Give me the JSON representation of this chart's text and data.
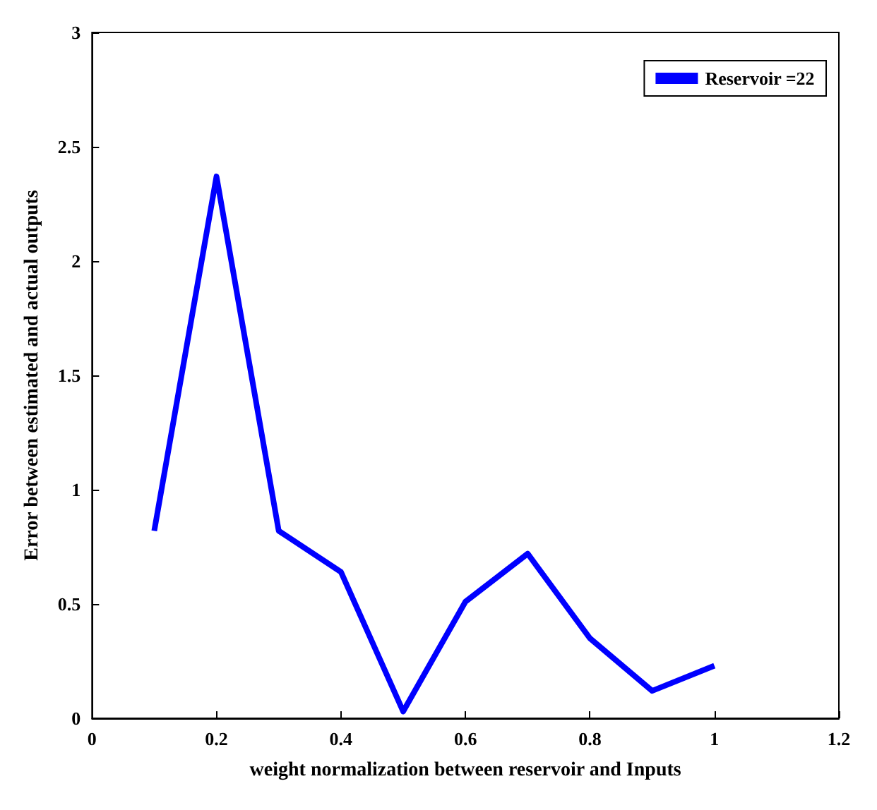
{
  "chart_data": {
    "type": "line",
    "xlabel": "weight normalization between reservoir and Inputs",
    "ylabel": "Error between estimated and actual outputs",
    "x": [
      0.1,
      0.2,
      0.3,
      0.4,
      0.5,
      0.6,
      0.7,
      0.8,
      0.9,
      1.0
    ],
    "series": [
      {
        "name": "Reservoir =22",
        "color": "#0000ff",
        "values": [
          0.82,
          2.37,
          0.82,
          0.64,
          0.03,
          0.51,
          0.72,
          0.35,
          0.12,
          0.23
        ]
      }
    ],
    "xlim": [
      0,
      1.2
    ],
    "xticks": [
      0,
      0.2,
      0.4,
      0.6,
      0.8,
      1,
      1.2
    ],
    "ylim": [
      0,
      3
    ],
    "yticks": [
      0,
      0.5,
      1,
      1.5,
      2,
      2.5,
      3
    ],
    "grid": false,
    "legend": "top right",
    "marker": "none",
    "line_style": "solid"
  }
}
